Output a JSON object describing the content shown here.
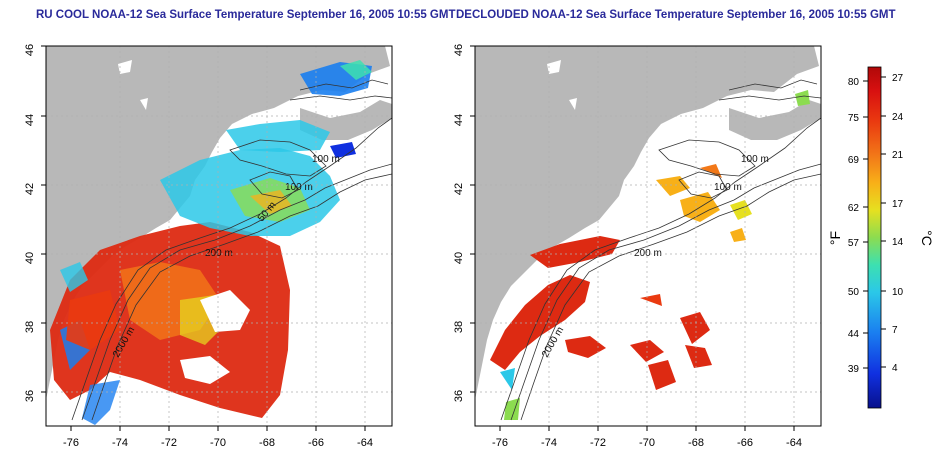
{
  "maps": [
    {
      "title": "RU COOL NOAA-12 Sea Surface Temperature September 16, 2005 10:55 GMT",
      "x_ticks": [
        "-76",
        "-74",
        "-72",
        "-70",
        "-68",
        "-66",
        "-64"
      ],
      "y_ticks": [
        "46",
        "44",
        "42",
        "40",
        "38",
        "36"
      ],
      "contour_labels": [
        "100 m",
        "100 m",
        "200 m",
        "2000 m",
        "50 m"
      ]
    },
    {
      "title": "DECLOUDED NOAA-12 Sea Surface Temperature September 16, 2005 10:55 GMT",
      "x_ticks": [
        "-76",
        "-74",
        "-72",
        "-70",
        "-68",
        "-66",
        "-64"
      ],
      "y_ticks": [
        "46",
        "44",
        "42",
        "40",
        "38",
        "36"
      ],
      "contour_labels": [
        "100 m",
        "100 m",
        "200 m",
        "2000 m"
      ]
    }
  ],
  "colorbar": {
    "fahrenheit_ticks": [
      "80",
      "75",
      "69",
      "62",
      "57",
      "50",
      "44",
      "39"
    ],
    "celsius_ticks": [
      "27",
      "24",
      "21",
      "17",
      "14",
      "10",
      "7",
      "4"
    ],
    "fahrenheit_label": "°F",
    "celsius_label": "°C",
    "colors": [
      "#08108c",
      "#1030e0",
      "#1a7ef0",
      "#2bc8e8",
      "#3de0b0",
      "#8cdc50",
      "#e6e020",
      "#f8b018",
      "#f27818",
      "#ea3a10",
      "#d81010",
      "#b00808"
    ]
  },
  "colors": {
    "land": "#b8b8b8",
    "title": "#2a2a9a",
    "grid": "#b0b0b0"
  }
}
